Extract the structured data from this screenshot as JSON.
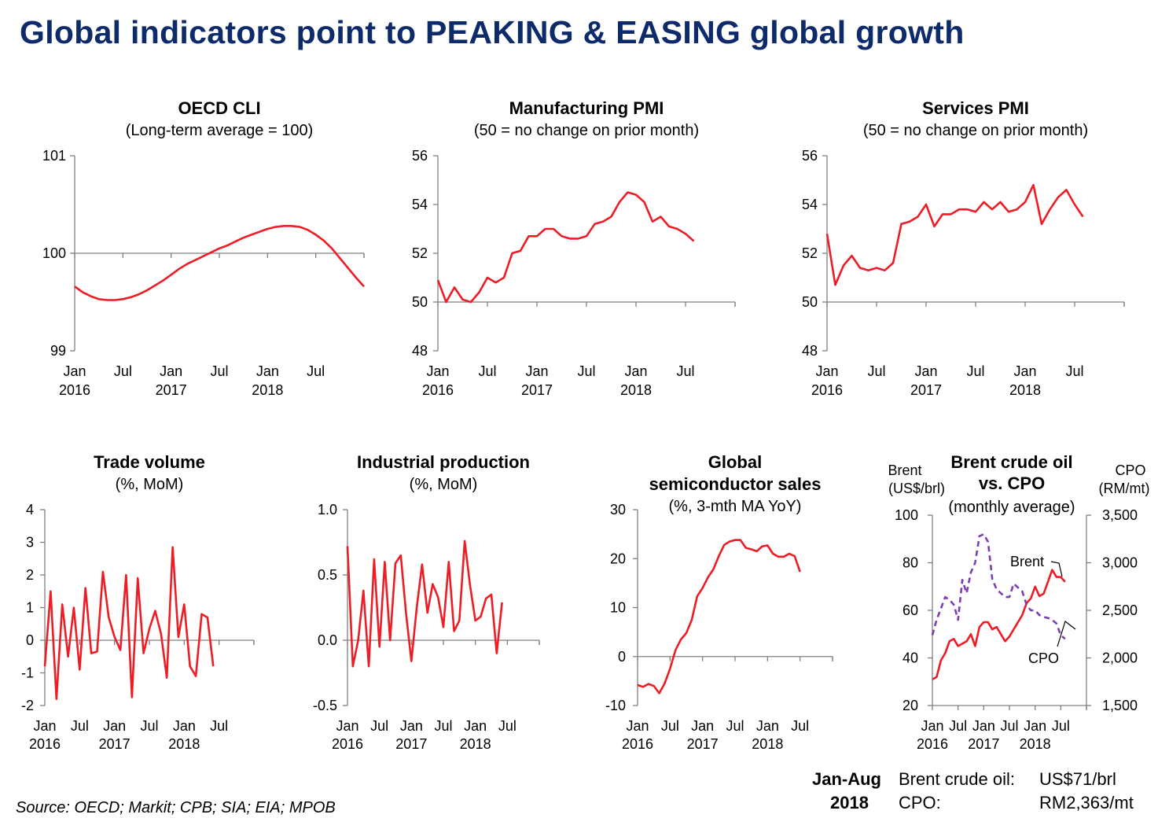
{
  "page_title": "Global indicators point to PEAKING & EASING global growth",
  "source": "Source: OECD; Markit; CPB; SIA; EIA; MPOB",
  "footer": {
    "period_line1": "Jan-Aug",
    "period_line2": "2018",
    "brent_label": "Brent crude oil:",
    "brent_value": "US$71/brl",
    "cpo_label": "CPO:",
    "cpo_value": "RM2,363/mt"
  },
  "colors": {
    "title": "#0d2a6a",
    "series_red": "#ee1c25",
    "series_purple": "#7b3fb4",
    "axis": "#808080"
  },
  "chart_data": [
    {
      "type": "line",
      "title": "OECD CLI",
      "subtitle": "(Long-term average = 100)",
      "ylim": [
        99,
        101
      ],
      "yticks": [
        "101",
        "100",
        "99"
      ],
      "baseline": 100,
      "xticks": [
        [
          "Jan",
          "2016"
        ],
        [
          "Jul",
          ""
        ],
        [
          "Jan",
          "2017"
        ],
        [
          "Jul",
          ""
        ],
        [
          "Jan",
          "2018"
        ],
        [
          "Jul",
          ""
        ]
      ],
      "series": [
        {
          "values": [
            99.66,
            99.6,
            99.56,
            99.53,
            99.52,
            99.52,
            99.53,
            99.55,
            99.58,
            99.62,
            99.67,
            99.72,
            99.78,
            99.84,
            99.89,
            99.93,
            99.97,
            100.01,
            100.05,
            100.08,
            100.12,
            100.16,
            100.19,
            100.22,
            100.25,
            100.27,
            100.28,
            100.28,
            100.27,
            100.24,
            100.19,
            100.13,
            100.05,
            99.95,
            99.85,
            99.75,
            99.66
          ]
        }
      ]
    },
    {
      "type": "line",
      "title": "Manufacturing PMI",
      "subtitle": "(50 = no change on prior month)",
      "ylim": [
        48,
        56
      ],
      "yticks": [
        "56",
        "54",
        "52",
        "50",
        "48"
      ],
      "baseline": 50,
      "xticks": [
        [
          "Jan",
          "2016"
        ],
        [
          "Jul",
          ""
        ],
        [
          "Jan",
          "2017"
        ],
        [
          "Jul",
          ""
        ],
        [
          "Jan",
          "2018"
        ],
        [
          "Jul",
          ""
        ]
      ],
      "series": [
        {
          "values": [
            50.9,
            50.0,
            50.6,
            50.1,
            50.0,
            50.4,
            51.0,
            50.8,
            51.0,
            52.0,
            52.1,
            52.7,
            52.7,
            53.0,
            53.0,
            52.7,
            52.6,
            52.6,
            52.7,
            53.2,
            53.3,
            53.5,
            54.1,
            54.5,
            54.4,
            54.1,
            53.3,
            53.5,
            53.1,
            53.0,
            52.8,
            52.5
          ]
        }
      ]
    },
    {
      "type": "line",
      "title": "Services PMI",
      "subtitle": "(50 = no change on prior month)",
      "ylim": [
        48,
        56
      ],
      "yticks": [
        "56",
        "54",
        "52",
        "50",
        "48"
      ],
      "baseline": 50,
      "xticks": [
        [
          "Jan",
          "2016"
        ],
        [
          "Jul",
          ""
        ],
        [
          "Jan",
          "2017"
        ],
        [
          "Jul",
          ""
        ],
        [
          "Jan",
          "2018"
        ],
        [
          "Jul",
          ""
        ]
      ],
      "series": [
        {
          "values": [
            52.8,
            50.7,
            51.5,
            51.9,
            51.4,
            51.3,
            51.4,
            51.3,
            51.6,
            53.2,
            53.3,
            53.5,
            54.0,
            53.1,
            53.6,
            53.6,
            53.8,
            53.8,
            53.7,
            54.1,
            53.8,
            54.1,
            53.7,
            53.8,
            54.1,
            54.8,
            53.2,
            53.8,
            54.3,
            54.6,
            54.0,
            53.5
          ]
        }
      ]
    },
    {
      "type": "line",
      "title": "Trade volume",
      "subtitle": "(%, MoM)",
      "ylim": [
        -2,
        4
      ],
      "yticks": [
        "4",
        "3",
        "2",
        "1",
        "0",
        "-1",
        "-2"
      ],
      "baseline": 0,
      "xticks": [
        [
          "Jan",
          "2016"
        ],
        [
          "Jul",
          ""
        ],
        [
          "Jan",
          "2017"
        ],
        [
          "Jul",
          ""
        ],
        [
          "Jan",
          "2018"
        ],
        [
          "Jul",
          ""
        ]
      ],
      "series": [
        {
          "values": [
            -0.8,
            1.5,
            -1.8,
            1.1,
            -0.5,
            1.0,
            -0.9,
            1.6,
            -0.4,
            -0.35,
            2.1,
            0.7,
            0.1,
            -0.3,
            2.0,
            -1.75,
            1.9,
            -0.4,
            0.35,
            0.9,
            0.2,
            -1.15,
            2.85,
            0.1,
            1.1,
            -0.8,
            -1.1,
            0.8,
            0.7,
            -0.8
          ]
        }
      ]
    },
    {
      "type": "line",
      "title": "Industrial production",
      "subtitle": "(%, MoM)",
      "ylim": [
        -0.5,
        1.0
      ],
      "yticks": [
        "1.0",
        "0.5",
        "0.0",
        "-0.5"
      ],
      "baseline": 0,
      "xticks": [
        [
          "Jan",
          "2016"
        ],
        [
          "Jul",
          ""
        ],
        [
          "Jan",
          "2017"
        ],
        [
          "Jul",
          ""
        ],
        [
          "Jan",
          "2018"
        ],
        [
          "Jul",
          ""
        ]
      ],
      "series": [
        {
          "values": [
            0.72,
            -0.2,
            0.0,
            0.38,
            -0.2,
            0.62,
            -0.05,
            0.6,
            0.0,
            0.59,
            0.65,
            0.2,
            -0.16,
            0.25,
            0.58,
            0.21,
            0.43,
            0.33,
            0.1,
            0.6,
            0.07,
            0.15,
            0.76,
            0.42,
            0.15,
            0.18,
            0.32,
            0.35,
            -0.1,
            0.29
          ]
        }
      ]
    },
    {
      "type": "line",
      "title": "Global semiconductor sales",
      "subtitle": "(%, 3-mth MA YoY)",
      "ylim": [
        -10,
        30
      ],
      "yticks": [
        "30",
        "20",
        "10",
        "0",
        "-10"
      ],
      "baseline": 0,
      "xticks": [
        [
          "Jan",
          "2016"
        ],
        [
          "Jul",
          ""
        ],
        [
          "Jan",
          "2017"
        ],
        [
          "Jul",
          ""
        ],
        [
          "Jan",
          "2018"
        ],
        [
          "Jul",
          ""
        ]
      ],
      "series": [
        {
          "values": [
            -5.8,
            -6.2,
            -5.6,
            -6.0,
            -7.5,
            -5.5,
            -2.5,
            1.3,
            3.5,
            4.8,
            7.5,
            12.3,
            14.0,
            16.2,
            17.8,
            20.5,
            22.8,
            23.5,
            23.8,
            23.8,
            22.2,
            21.9,
            21.5,
            22.5,
            22.7,
            21.0,
            20.4,
            20.4,
            21.0,
            20.5,
            17.3
          ]
        }
      ]
    },
    {
      "type": "line",
      "title": "Brent crude oil vs. CPO",
      "subtitle": "(monthly average)",
      "left_axis_label": [
        "Brent",
        "(US$/brl)"
      ],
      "right_axis_label": [
        "CPO",
        "(RM/mt)"
      ],
      "ylim": [
        20,
        100
      ],
      "yticks": [
        "100",
        "80",
        "60",
        "40",
        "20"
      ],
      "ylim_right": [
        1500,
        3500
      ],
      "yticks_right": [
        "3,500",
        "3,000",
        "2,500",
        "2,000",
        "1,500"
      ],
      "xticks": [
        [
          "Jan",
          "2016"
        ],
        [
          "Jul",
          ""
        ],
        [
          "Jan",
          "2017"
        ],
        [
          "Jul",
          ""
        ],
        [
          "Jan",
          "2018"
        ],
        [
          "Jul",
          ""
        ]
      ],
      "series": [
        {
          "name": "Brent",
          "axis": "left",
          "style": "solid",
          "values": [
            31,
            32,
            39,
            42,
            47,
            48,
            45,
            46,
            47,
            50,
            45,
            53,
            55,
            55,
            52,
            53,
            50,
            47,
            49,
            52,
            55,
            58,
            63,
            65,
            70,
            66,
            67,
            72,
            77,
            74,
            74,
            72
          ]
        },
        {
          "name": "CPO",
          "axis": "right",
          "style": "dashed",
          "values": [
            2240,
            2400,
            2520,
            2640,
            2610,
            2560,
            2400,
            2820,
            2680,
            2900,
            3000,
            3280,
            3300,
            3220,
            2830,
            2720,
            2680,
            2640,
            2640,
            2780,
            2740,
            2700,
            2560,
            2500,
            2500,
            2450,
            2430,
            2420,
            2400,
            2360,
            2240,
            2200
          ]
        }
      ]
    }
  ]
}
